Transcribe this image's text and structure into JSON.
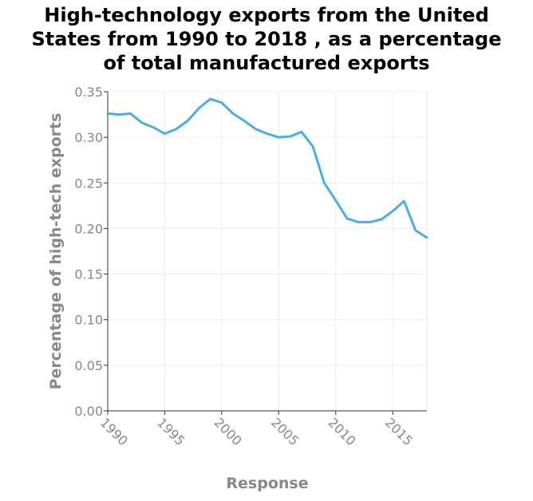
{
  "chart_data": {
    "type": "line",
    "title_lines": [
      "High-technology exports from the United",
      "States from 1990 to 2018 , as a percentage",
      "of total manufactured exports"
    ],
    "xlabel": "Response",
    "ylabel": "Percentage of high-tech exports",
    "xlim": [
      1990,
      2018
    ],
    "ylim": [
      0,
      0.35
    ],
    "x_ticks": [
      "1990",
      "1995",
      "2000",
      "2005",
      "2010",
      "2015"
    ],
    "y_ticks": [
      "0.00",
      "0.05",
      "0.10",
      "0.15",
      "0.20",
      "0.25",
      "0.30",
      "0.35"
    ],
    "grid": true,
    "line_color": "#4aaee3",
    "series": [
      {
        "x": [
          1990,
          1991,
          1992,
          1993,
          1994,
          1995,
          1996,
          1997,
          1998,
          1999,
          2000,
          2001,
          2002,
          2003,
          2004,
          2005,
          2006,
          2007,
          2008,
          2009,
          2010,
          2011,
          2012,
          2013,
          2014,
          2015,
          2016,
          2017,
          2018
        ],
        "values": [
          0.326,
          0.325,
          0.326,
          0.316,
          0.311,
          0.304,
          0.309,
          0.318,
          0.332,
          0.342,
          0.338,
          0.326,
          0.318,
          0.309,
          0.304,
          0.3,
          0.301,
          0.306,
          0.29,
          0.25,
          0.231,
          0.211,
          0.207,
          0.207,
          0.21,
          0.219,
          0.23,
          0.198,
          0.19
        ]
      }
    ]
  }
}
